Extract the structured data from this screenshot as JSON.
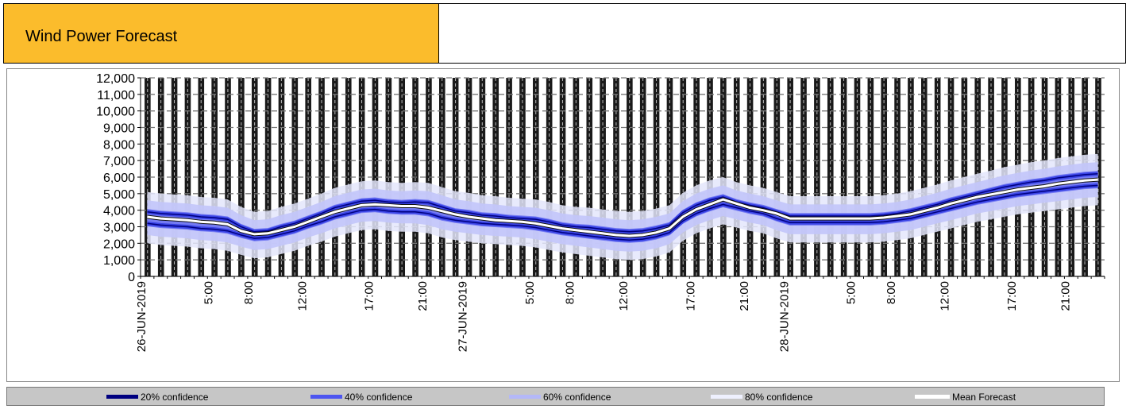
{
  "header": {
    "title": "Wind Power Forecast"
  },
  "chart_data": {
    "type": "area",
    "title": "Wind Power Forecast",
    "ylim": [
      0,
      12000
    ],
    "y_ticks": [
      "0",
      "1,000",
      "2,000",
      "3,000",
      "4,000",
      "5,000",
      "6,000",
      "7,000",
      "8,000",
      "9,000",
      "10,000",
      "11,000",
      "12,000"
    ],
    "x_ticks": [
      {
        "hour": 0,
        "label": "26-JUN-2019"
      },
      {
        "hour": 5,
        "label": "5:00"
      },
      {
        "hour": 8,
        "label": "8:00"
      },
      {
        "hour": 12,
        "label": "12:00"
      },
      {
        "hour": 17,
        "label": "17:00"
      },
      {
        "hour": 21,
        "label": "21:00"
      },
      {
        "hour": 24,
        "label": "27-JUN-2019"
      },
      {
        "hour": 29,
        "label": "5:00"
      },
      {
        "hour": 32,
        "label": "8:00"
      },
      {
        "hour": 36,
        "label": "12:00"
      },
      {
        "hour": 41,
        "label": "17:00"
      },
      {
        "hour": 45,
        "label": "21:00"
      },
      {
        "hour": 48,
        "label": "28-JUN-2019"
      },
      {
        "hour": 53,
        "label": "5:00"
      },
      {
        "hour": 56,
        "label": "8:00"
      },
      {
        "hour": 60,
        "label": "12:00"
      },
      {
        "hour": 65,
        "label": "17:00"
      },
      {
        "hour": 69,
        "label": "21:00"
      }
    ],
    "x_range_hours": [
      0,
      72
    ],
    "grid": true,
    "legend_position": "bottom",
    "series": [
      {
        "name": "20% confidence",
        "color": "#000080"
      },
      {
        "name": "40% confidence",
        "color": "#4d55f0"
      },
      {
        "name": "60% confidence",
        "color": "#b4b8f8"
      },
      {
        "name": "80% confidence",
        "color": "#e8e9fc"
      },
      {
        "name": "Mean Forecast",
        "color": "#ffffff"
      }
    ],
    "hours": [
      1,
      2,
      3,
      4,
      5,
      6,
      7,
      8,
      9,
      10,
      11,
      12,
      13,
      14,
      15,
      16,
      17,
      18,
      19,
      20,
      21,
      22,
      23,
      24,
      25,
      26,
      27,
      28,
      29,
      30,
      31,
      32,
      33,
      34,
      35,
      36,
      37,
      38,
      39,
      40,
      41,
      42,
      43,
      44,
      45,
      46,
      47,
      48,
      49,
      50,
      51,
      52,
      53,
      54,
      55,
      56,
      57,
      58,
      59,
      60,
      61,
      62,
      63,
      64,
      65,
      66,
      67,
      68,
      69,
      70,
      71,
      72
    ],
    "upper": [
      3900,
      3800,
      3750,
      3700,
      3600,
      3550,
      3450,
      3000,
      2700,
      2750,
      3000,
      3200,
      3500,
      3800,
      4150,
      4350,
      4550,
      4600,
      4500,
      4450,
      4500,
      4450,
      4200,
      3950,
      3850,
      3700,
      3650,
      3550,
      3500,
      3450,
      3300,
      3100,
      3000,
      2950,
      2850,
      2750,
      2700,
      2750,
      2900,
      3100,
      3850,
      4300,
      4600,
      4800,
      4500,
      4300,
      4150,
      3900,
      3650,
      3650,
      3650,
      3650,
      3650,
      3650,
      3650,
      3700,
      3800,
      3950,
      4150,
      4350,
      4600,
      4800,
      5000,
      5200,
      5400,
      5550,
      5700,
      5800,
      5950,
      6050,
      6150,
      6200
    ],
    "mean": [
      3600,
      3500,
      3450,
      3400,
      3300,
      3250,
      3150,
      2750,
      2550,
      2600,
      2800,
      3000,
      3300,
      3600,
      3900,
      4100,
      4300,
      4350,
      4300,
      4250,
      4250,
      4150,
      3950,
      3750,
      3600,
      3500,
      3400,
      3350,
      3300,
      3200,
      3050,
      2900,
      2800,
      2700,
      2600,
      2500,
      2450,
      2500,
      2650,
      2900,
      3600,
      4050,
      4350,
      4650,
      4400,
      4150,
      4000,
      3800,
      3500,
      3500,
      3500,
      3500,
      3500,
      3500,
      3500,
      3550,
      3650,
      3750,
      3950,
      4150,
      4400,
      4600,
      4800,
      4950,
      5100,
      5250,
      5350,
      5450,
      5600,
      5700,
      5800,
      5850
    ],
    "lower": [
      3200,
      3100,
      3050,
      3000,
      2900,
      2850,
      2750,
      2500,
      2300,
      2350,
      2550,
      2750,
      3050,
      3300,
      3600,
      3800,
      4000,
      4050,
      3950,
      3900,
      3900,
      3800,
      3550,
      3400,
      3300,
      3200,
      3150,
      3100,
      3050,
      2950,
      2800,
      2650,
      2550,
      2450,
      2350,
      2250,
      2200,
      2250,
      2400,
      2650,
      3350,
      3800,
      4100,
      4350,
      4150,
      3950,
      3800,
      3500,
      3250,
      3250,
      3250,
      3250,
      3250,
      3250,
      3250,
      3300,
      3400,
      3500,
      3700,
      3900,
      4100,
      4300,
      4500,
      4650,
      4800,
      4950,
      5050,
      5150,
      5250,
      5350,
      5450,
      5500
    ],
    "band_half_width": {
      "20%": 150,
      "40%": 350,
      "60%": 700,
      "80%": 1200
    }
  }
}
